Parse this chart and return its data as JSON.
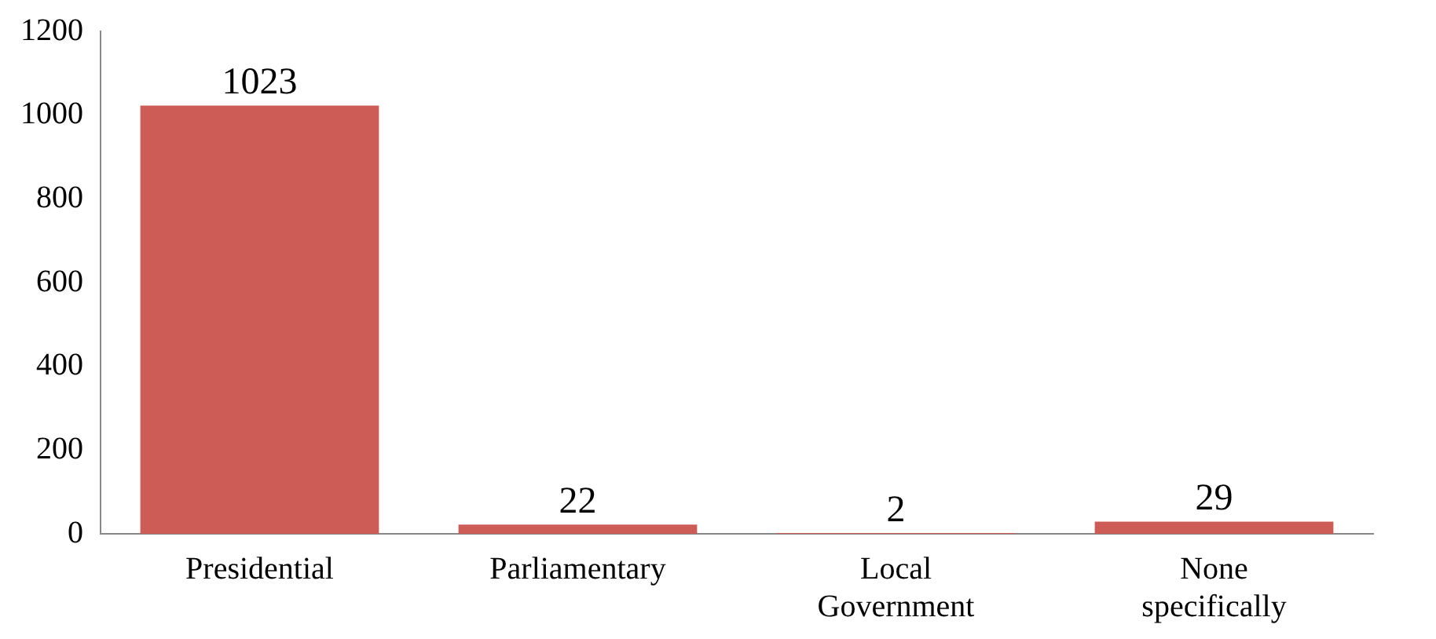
{
  "chart_data": {
    "type": "bar",
    "categories": [
      "Presidential",
      "Parliamentary",
      "Local Government",
      "None specifically"
    ],
    "values": [
      1023,
      22,
      2,
      29
    ],
    "color": "#cd5c57",
    "ylim": [
      0,
      1200
    ],
    "yticks": [
      0,
      200,
      400,
      600,
      800,
      1000,
      1200
    ],
    "grid": false,
    "data_labels": true,
    "legend": false
  }
}
